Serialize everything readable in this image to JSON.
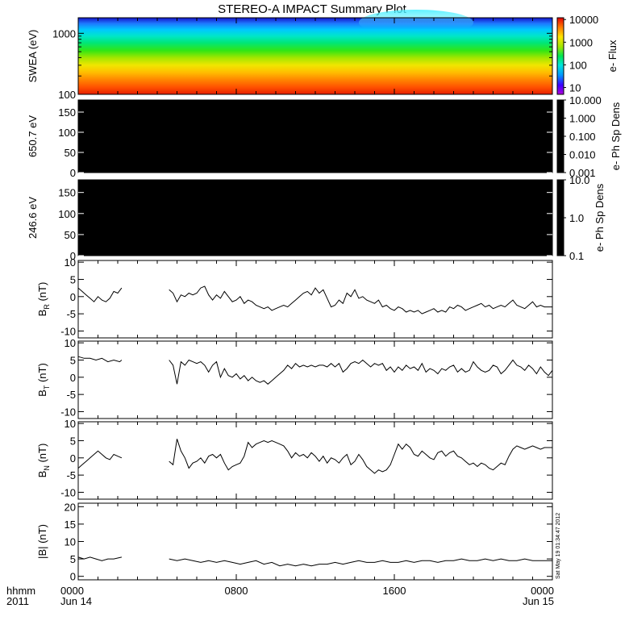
{
  "title": "STEREO-A IMPACT Summary Plot",
  "timestamp": "Sat May 19 01:34:47 2012",
  "x_axis": {
    "corner_label_1": "hhmm",
    "corner_label_2": "2011",
    "ticks": [
      {
        "label": "0000",
        "sublabel": "Jun 14",
        "hour": 0
      },
      {
        "label": "0800",
        "sublabel": "",
        "hour": 8
      },
      {
        "label": "1600",
        "sublabel": "",
        "hour": 16
      },
      {
        "label": "0000",
        "sublabel": "Jun 15",
        "hour": 24
      }
    ],
    "range_hours": [
      0,
      24
    ]
  },
  "chart_data": [
    {
      "type": "heatmap",
      "ylabel": "SWEA (eV)",
      "yscale": "log",
      "ylim": [
        100,
        1800
      ],
      "yticks": [
        {
          "label": "1000",
          "value": 1000
        },
        {
          "label": "100",
          "value": 100
        }
      ],
      "colorbar": {
        "label": "e- Flux",
        "scale": "log",
        "range": [
          5,
          12000
        ],
        "ticks": [
          "10000",
          "1000",
          "100",
          "10"
        ],
        "tick_values": [
          10000,
          1000,
          100,
          10
        ]
      },
      "energy_bands": [
        {
          "energy": 1800,
          "color": "#1414c8"
        },
        {
          "energy": 1450,
          "color": "#1e78ff"
        },
        {
          "energy": 1150,
          "color": "#00c8ff"
        },
        {
          "energy": 900,
          "color": "#00e6c8"
        },
        {
          "energy": 700,
          "color": "#00e678"
        },
        {
          "energy": 520,
          "color": "#32e614"
        },
        {
          "energy": 400,
          "color": "#a0e600"
        },
        {
          "energy": 300,
          "color": "#f0e600"
        },
        {
          "energy": 230,
          "color": "#ffbe00"
        },
        {
          "energy": 170,
          "color": "#ff8200"
        },
        {
          "energy": 130,
          "color": "#ff5000"
        },
        {
          "energy": 100,
          "color": "#e61e00"
        }
      ],
      "bright_patch": {
        "start_hour": 14.2,
        "end_hour": 20.0,
        "color": "#50f0ff"
      }
    },
    {
      "type": "heatmap",
      "ylabel": "650.7 eV",
      "ylim": [
        0,
        180
      ],
      "yticks": [
        "150",
        "100",
        "50",
        "0"
      ],
      "ytick_values": [
        150,
        100,
        50,
        0
      ],
      "fill": "#000000",
      "colorbar": {
        "label": "e- Ph Sp Dens",
        "scale": "log",
        "range": [
          0.001,
          10
        ],
        "ticks": [
          "10.000",
          "1.000",
          "0.100",
          "0.010",
          "0.001"
        ],
        "tick_values": [
          10,
          1,
          0.1,
          0.01,
          0.001
        ]
      }
    },
    {
      "type": "heatmap",
      "ylabel": "246.6 eV",
      "ylim": [
        0,
        180
      ],
      "yticks": [
        "150",
        "100",
        "50",
        "0"
      ],
      "ytick_values": [
        150,
        100,
        50,
        0
      ],
      "fill": "#000000",
      "colorbar": {
        "label": "e- Ph Sp Dens",
        "scale": "log",
        "range": [
          0.1,
          10
        ],
        "ticks": [
          "10.0",
          "1.0",
          "0.1"
        ],
        "tick_values": [
          10,
          1,
          0.1
        ]
      }
    },
    {
      "type": "line",
      "ylabel_main": "B",
      "ylabel_sub": "R",
      "ylabel_unit": " (nT)",
      "ylim": [
        -12,
        10.5
      ],
      "yticks": [
        "10",
        "5",
        "0",
        "-5",
        "-10"
      ],
      "ytick_values": [
        10,
        5,
        0,
        -5,
        -10
      ],
      "segments": [
        {
          "x": [
            0.0,
            0.2,
            0.4,
            0.6,
            0.8,
            1.0,
            1.2,
            1.4,
            1.6,
            1.8,
            2.0,
            2.2
          ],
          "y": [
            2.5,
            1.5,
            0.5,
            -0.5,
            -1.5,
            0.0,
            -1.0,
            -1.5,
            -0.5,
            1.5,
            1.0,
            2.5
          ]
        },
        {
          "x": [
            4.6,
            4.8,
            5.0,
            5.2,
            5.4,
            5.6,
            5.8,
            6.0,
            6.2,
            6.4,
            6.6,
            6.8,
            7.0,
            7.2,
            7.4,
            7.6,
            7.8,
            8.0,
            8.2,
            8.4,
            8.6,
            8.8,
            9.0,
            9.2,
            9.4,
            9.6,
            9.8,
            10.0,
            10.2,
            10.4,
            10.6,
            10.8,
            11.0,
            11.2,
            11.4,
            11.6,
            11.8,
            12.0,
            12.2,
            12.4,
            12.6,
            12.8,
            13.0,
            13.2,
            13.4,
            13.6,
            13.8,
            14.0,
            14.2,
            14.4,
            14.6,
            14.8,
            15.0,
            15.2,
            15.4,
            15.6,
            15.8,
            16.0,
            16.2,
            16.4,
            16.6,
            16.8,
            17.0,
            17.2,
            17.4,
            17.6,
            17.8,
            18.0,
            18.2,
            18.4,
            18.6,
            18.8,
            19.0,
            19.2,
            19.4,
            19.6,
            19.8,
            20.0,
            20.2,
            20.4,
            20.6,
            20.8,
            21.0,
            21.2,
            21.4,
            21.6,
            21.8,
            22.0,
            22.2,
            22.4,
            22.6,
            22.8,
            23.0,
            23.2,
            23.4,
            23.6,
            23.8,
            24.0
          ],
          "y": [
            2.0,
            1.0,
            -1.5,
            0.5,
            0.0,
            1.0,
            0.5,
            1.0,
            2.5,
            3.0,
            0.5,
            -1.0,
            0.5,
            -0.5,
            1.5,
            0.0,
            -1.5,
            -1.0,
            0.0,
            -2.0,
            -1.0,
            -1.5,
            -2.5,
            -3.0,
            -3.5,
            -3.0,
            -4.0,
            -3.5,
            -3.0,
            -2.5,
            -3.0,
            -2.0,
            -1.0,
            0.0,
            1.0,
            1.5,
            0.5,
            2.5,
            1.0,
            2.0,
            -0.5,
            -3.0,
            -2.5,
            -1.0,
            -2.0,
            1.0,
            0.0,
            2.0,
            -0.5,
            0.0,
            -1.0,
            -1.5,
            -2.0,
            -1.0,
            -3.0,
            -2.5,
            -3.5,
            -4.0,
            -3.0,
            -3.5,
            -4.5,
            -4.0,
            -4.5,
            -4.0,
            -5.0,
            -4.5,
            -4.0,
            -3.5,
            -4.5,
            -4.0,
            -4.5,
            -3.0,
            -3.5,
            -2.5,
            -3.0,
            -4.0,
            -3.5,
            -3.0,
            -2.5,
            -2.0,
            -3.0,
            -2.5,
            -3.5,
            -3.0,
            -2.5,
            -3.0,
            -2.0,
            -1.0,
            -2.5,
            -3.0,
            -3.5,
            -2.5,
            -1.5,
            -3.0,
            -2.5,
            -3.0,
            -3.0,
            -3.0
          ]
        }
      ]
    },
    {
      "type": "line",
      "ylabel_main": "B",
      "ylabel_sub": "T",
      "ylabel_unit": " (nT)",
      "ylim": [
        -12,
        10.5
      ],
      "yticks": [
        "10",
        "5",
        "0",
        "-5",
        "-10"
      ],
      "ytick_values": [
        10,
        5,
        0,
        -5,
        -10
      ],
      "segments": [
        {
          "x": [
            0.0,
            0.3,
            0.6,
            0.9,
            1.2,
            1.5,
            1.8,
            2.1,
            2.2
          ],
          "y": [
            6.0,
            5.5,
            5.5,
            5.0,
            5.5,
            4.5,
            5.0,
            4.5,
            5.0
          ]
        },
        {
          "x": [
            4.6,
            4.8,
            5.0,
            5.2,
            5.4,
            5.6,
            5.8,
            6.0,
            6.2,
            6.4,
            6.6,
            6.8,
            7.0,
            7.2,
            7.4,
            7.6,
            7.8,
            8.0,
            8.2,
            8.4,
            8.6,
            8.8,
            9.0,
            9.2,
            9.4,
            9.6,
            9.8,
            10.0,
            10.2,
            10.4,
            10.6,
            10.8,
            11.0,
            11.2,
            11.4,
            11.6,
            11.8,
            12.0,
            12.2,
            12.4,
            12.6,
            12.8,
            13.0,
            13.2,
            13.4,
            13.6,
            13.8,
            14.0,
            14.2,
            14.4,
            14.6,
            14.8,
            15.0,
            15.2,
            15.4,
            15.6,
            15.8,
            16.0,
            16.2,
            16.4,
            16.6,
            16.8,
            17.0,
            17.2,
            17.4,
            17.6,
            17.8,
            18.0,
            18.2,
            18.4,
            18.6,
            18.8,
            19.0,
            19.2,
            19.4,
            19.6,
            19.8,
            20.0,
            20.2,
            20.4,
            20.6,
            20.8,
            21.0,
            21.2,
            21.4,
            21.6,
            21.8,
            22.0,
            22.2,
            22.4,
            22.6,
            22.8,
            23.0,
            23.2,
            23.4,
            23.6,
            23.8,
            24.0
          ],
          "y": [
            5.0,
            3.5,
            -2.0,
            4.5,
            3.5,
            5.0,
            4.5,
            4.0,
            4.5,
            3.5,
            1.5,
            3.5,
            4.5,
            0.0,
            2.5,
            0.5,
            0.0,
            1.0,
            -0.5,
            0.5,
            -1.0,
            0.0,
            -1.0,
            -1.5,
            -1.0,
            -2.0,
            -1.0,
            0.0,
            1.0,
            2.0,
            3.5,
            2.5,
            4.0,
            3.0,
            3.5,
            3.0,
            3.5,
            3.0,
            3.5,
            3.5,
            3.0,
            4.0,
            3.0,
            4.0,
            1.5,
            2.5,
            4.0,
            4.5,
            4.0,
            5.0,
            4.0,
            3.0,
            4.0,
            3.5,
            4.0,
            2.0,
            3.0,
            1.5,
            3.0,
            2.0,
            3.5,
            2.5,
            3.0,
            2.0,
            4.0,
            1.5,
            2.5,
            2.0,
            1.0,
            2.5,
            2.0,
            3.0,
            3.5,
            1.5,
            2.5,
            1.5,
            2.0,
            4.5,
            3.0,
            2.0,
            1.5,
            2.0,
            3.5,
            3.0,
            1.0,
            2.0,
            3.5,
            5.0,
            3.5,
            3.0,
            2.0,
            3.5,
            2.5,
            1.0,
            3.0,
            1.5,
            0.5,
            2.0
          ]
        }
      ]
    },
    {
      "type": "line",
      "ylabel_main": "B",
      "ylabel_sub": "N",
      "ylabel_unit": " (nT)",
      "ylim": [
        -12,
        10.5
      ],
      "yticks": [
        "10",
        "5",
        "0",
        "-5",
        "-10"
      ],
      "ytick_values": [
        10,
        5,
        0,
        -5,
        -10
      ],
      "segments": [
        {
          "x": [
            0.0,
            0.2,
            0.4,
            0.6,
            0.8,
            1.0,
            1.2,
            1.4,
            1.6,
            1.8,
            2.0,
            2.2
          ],
          "y": [
            -3.0,
            -2.0,
            -1.0,
            0.0,
            1.0,
            2.0,
            1.0,
            0.0,
            -0.5,
            1.0,
            0.5,
            0.0
          ]
        },
        {
          "x": [
            4.6,
            4.8,
            5.0,
            5.2,
            5.4,
            5.6,
            5.8,
            6.0,
            6.2,
            6.4,
            6.6,
            6.8,
            7.0,
            7.2,
            7.4,
            7.6,
            7.8,
            8.0,
            8.2,
            8.4,
            8.6,
            8.8,
            9.0,
            9.2,
            9.4,
            9.6,
            9.8,
            10.0,
            10.2,
            10.4,
            10.6,
            10.8,
            11.0,
            11.2,
            11.4,
            11.6,
            11.8,
            12.0,
            12.2,
            12.4,
            12.6,
            12.8,
            13.0,
            13.2,
            13.4,
            13.6,
            13.8,
            14.0,
            14.2,
            14.4,
            14.6,
            14.8,
            15.0,
            15.2,
            15.4,
            15.6,
            15.8,
            16.0,
            16.2,
            16.4,
            16.6,
            16.8,
            17.0,
            17.2,
            17.4,
            17.6,
            17.8,
            18.0,
            18.2,
            18.4,
            18.6,
            18.8,
            19.0,
            19.2,
            19.4,
            19.6,
            19.8,
            20.0,
            20.2,
            20.4,
            20.6,
            20.8,
            21.0,
            21.2,
            21.4,
            21.6,
            21.8,
            22.0,
            22.2,
            22.4,
            22.6,
            22.8,
            23.0,
            23.2,
            23.4,
            23.6,
            23.8,
            24.0
          ],
          "y": [
            -1.0,
            -2.0,
            5.5,
            2.0,
            0.0,
            -3.0,
            -1.5,
            -1.0,
            0.0,
            -1.5,
            0.5,
            1.0,
            0.0,
            1.0,
            -1.5,
            -3.5,
            -2.5,
            -2.0,
            -1.5,
            0.5,
            4.5,
            3.0,
            4.0,
            4.5,
            5.0,
            4.5,
            5.0,
            4.5,
            4.0,
            3.5,
            2.0,
            0.0,
            1.5,
            0.5,
            1.0,
            0.0,
            1.5,
            0.5,
            -1.0,
            0.5,
            -1.5,
            0.0,
            -0.5,
            -1.5,
            0.0,
            1.0,
            -2.0,
            -1.0,
            1.0,
            -0.5,
            -2.5,
            -3.5,
            -4.5,
            -3.5,
            -4.0,
            -3.5,
            -2.0,
            1.0,
            4.0,
            2.5,
            4.0,
            3.0,
            1.0,
            0.5,
            2.0,
            1.0,
            0.0,
            -0.5,
            1.5,
            2.0,
            0.5,
            1.5,
            2.0,
            0.5,
            0.0,
            -1.0,
            -2.0,
            -1.5,
            -2.5,
            -1.5,
            -2.0,
            -3.0,
            -3.5,
            -2.5,
            -1.5,
            -2.0,
            0.5,
            2.5,
            3.5,
            3.0,
            2.5,
            3.0,
            3.5,
            3.0,
            2.5,
            3.0,
            3.0,
            3.0
          ]
        }
      ]
    },
    {
      "type": "line",
      "ylabel": "|B| (nT)",
      "ylim": [
        -1,
        21
      ],
      "yticks": [
        "20",
        "15",
        "10",
        "5",
        "0"
      ],
      "ytick_values": [
        20,
        15,
        10,
        5,
        0
      ],
      "segments": [
        {
          "x": [
            0.0,
            0.3,
            0.6,
            0.9,
            1.2,
            1.5,
            1.8,
            2.2
          ],
          "y": [
            5.5,
            5.0,
            5.5,
            5.0,
            4.5,
            5.0,
            5.0,
            5.5
          ]
        },
        {
          "x": [
            4.6,
            5.0,
            5.4,
            5.8,
            6.2,
            6.6,
            7.0,
            7.4,
            7.8,
            8.2,
            8.6,
            9.0,
            9.4,
            9.8,
            10.2,
            10.6,
            11.0,
            11.4,
            11.8,
            12.2,
            12.6,
            13.0,
            13.4,
            13.8,
            14.2,
            14.6,
            15.0,
            15.4,
            15.8,
            16.2,
            16.6,
            17.0,
            17.4,
            17.8,
            18.2,
            18.6,
            19.0,
            19.4,
            19.8,
            20.2,
            20.6,
            21.0,
            21.4,
            21.8,
            22.2,
            22.6,
            23.0,
            23.4,
            23.8,
            24.0
          ],
          "y": [
            5.0,
            4.5,
            5.0,
            4.5,
            4.0,
            4.5,
            4.0,
            4.5,
            4.0,
            3.5,
            4.0,
            4.5,
            3.5,
            4.0,
            3.0,
            3.5,
            3.0,
            3.5,
            3.0,
            3.5,
            3.5,
            4.0,
            3.5,
            4.0,
            4.5,
            4.0,
            4.0,
            4.5,
            4.0,
            4.0,
            4.5,
            4.0,
            4.5,
            4.5,
            4.0,
            4.5,
            4.5,
            5.0,
            4.5,
            4.5,
            5.0,
            4.5,
            5.0,
            4.5,
            4.5,
            5.0,
            4.5,
            4.5,
            4.5,
            4.5
          ]
        }
      ]
    }
  ]
}
